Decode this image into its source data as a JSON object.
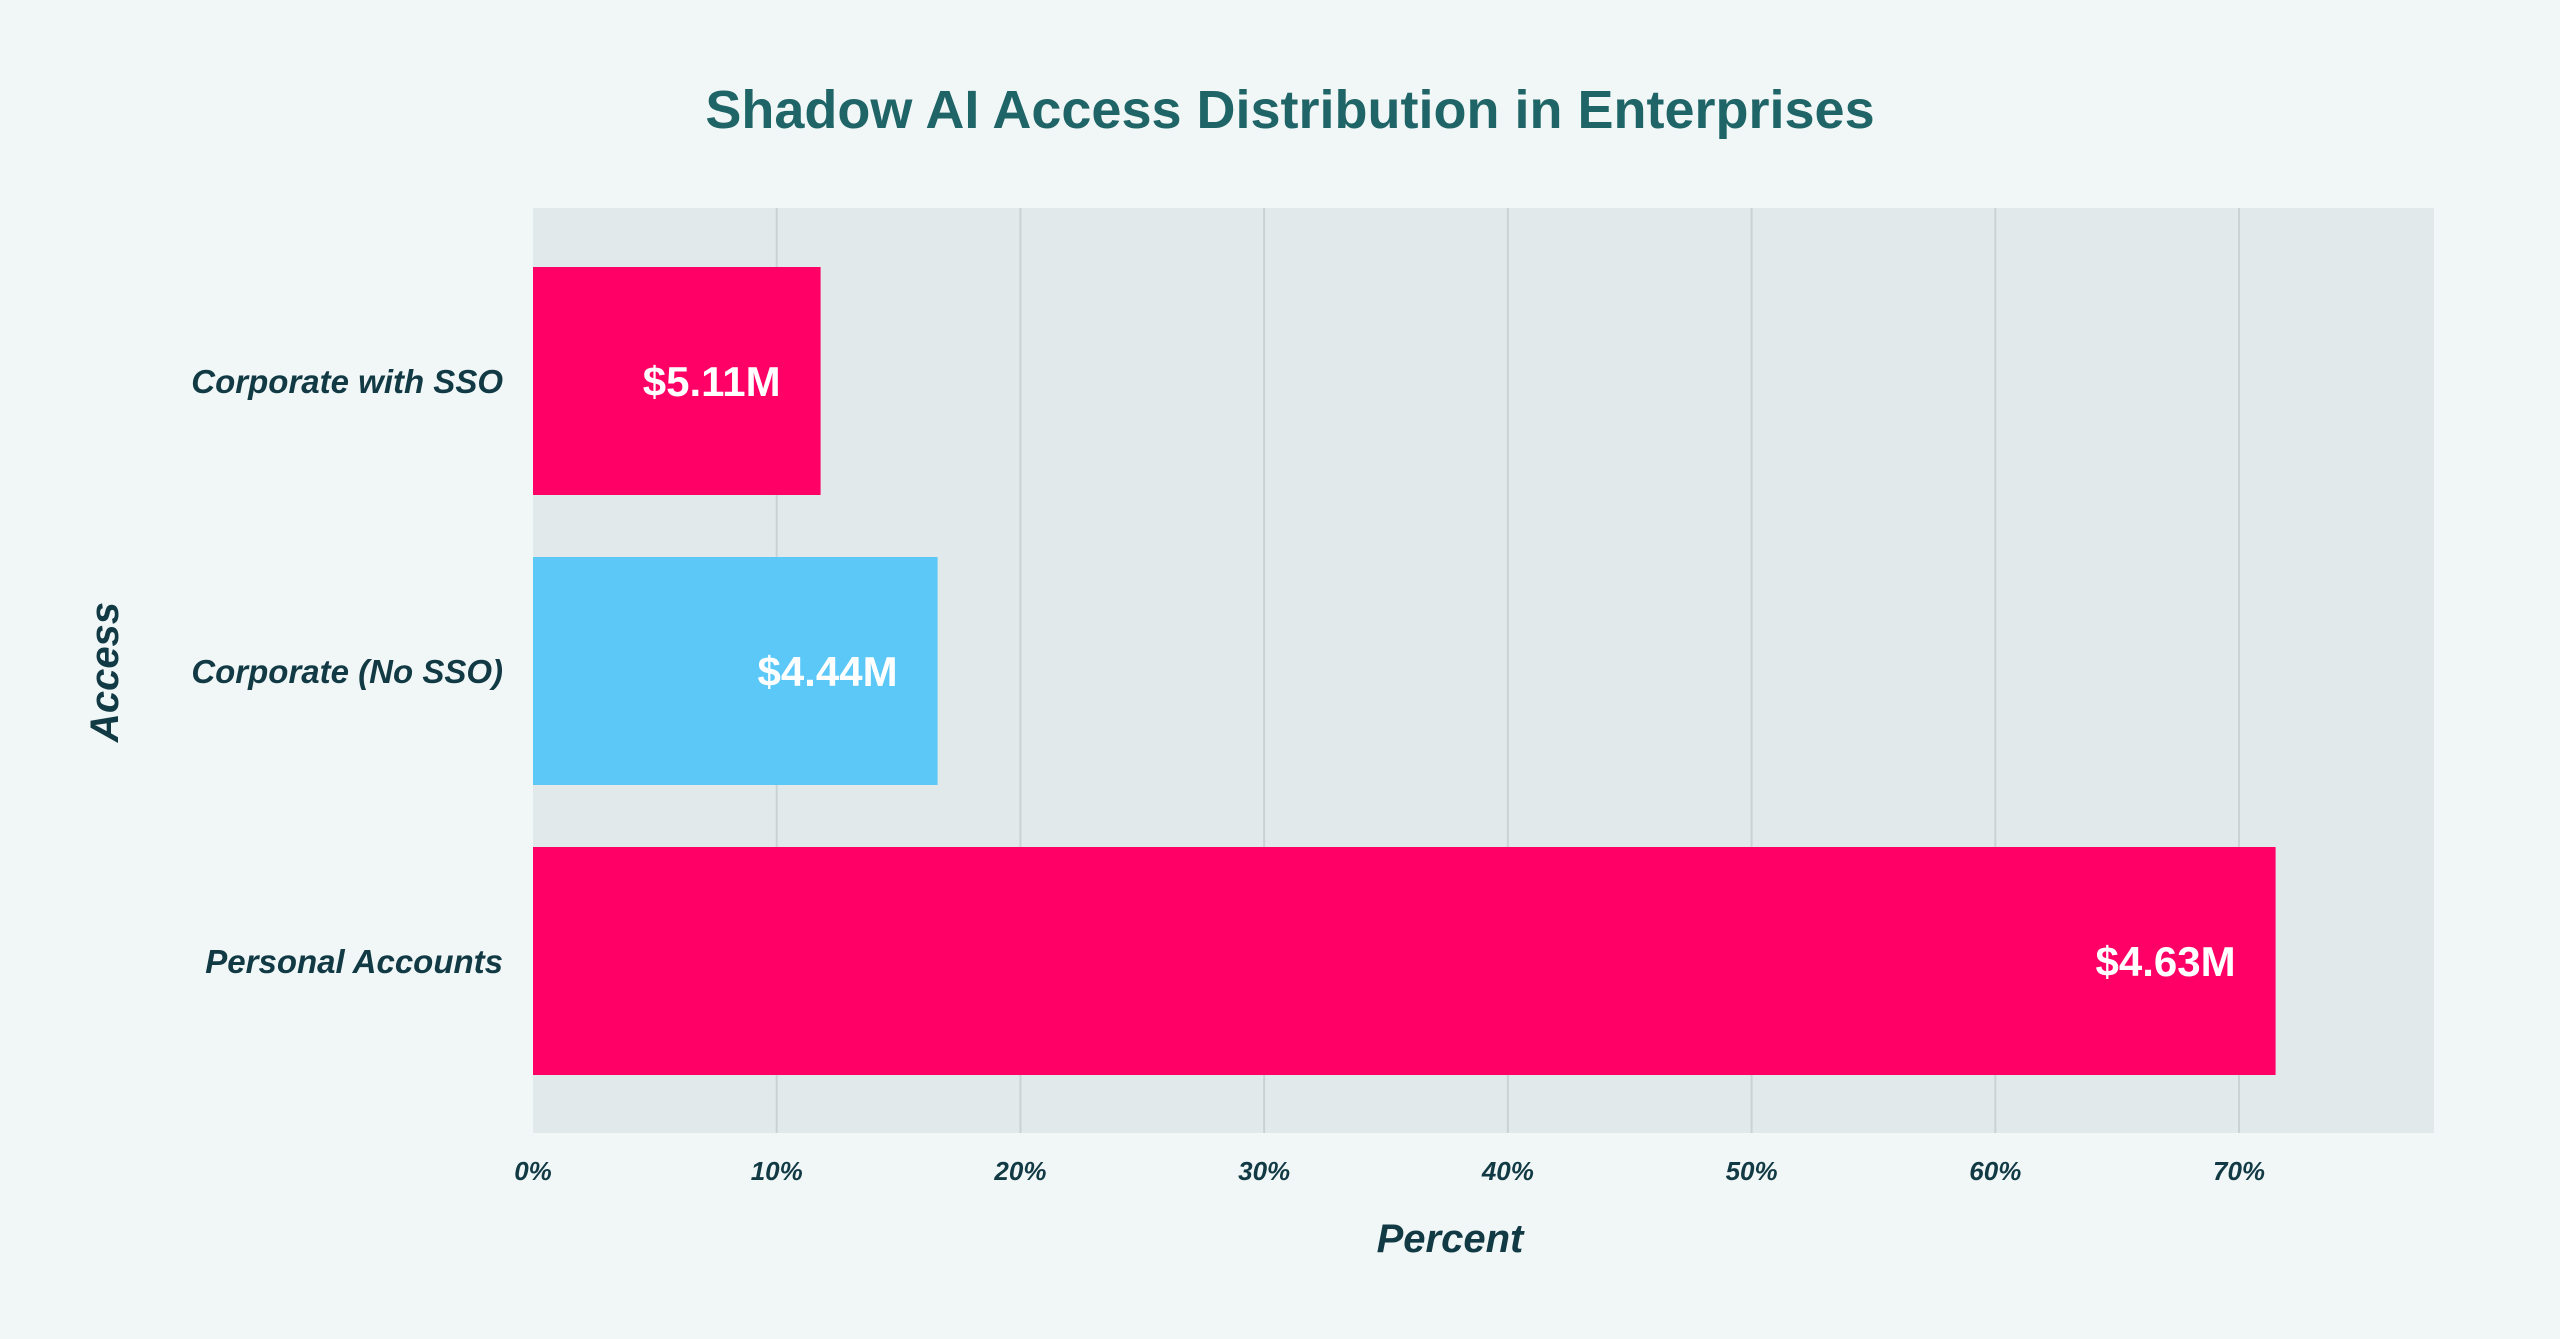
{
  "chart_data": {
    "type": "bar",
    "orientation": "horizontal",
    "title": "Shadow AI Access Distribution in Enterprises",
    "xlabel": "Percent",
    "ylabel": "Access",
    "categories": [
      "Corporate with SSO",
      "Corporate (No SSO)",
      "Personal Accounts"
    ],
    "values": [
      11.8,
      16.6,
      71.5
    ],
    "data_labels": [
      "$5.11M",
      "$4.44M",
      "$4.63M"
    ],
    "bar_colors": [
      "#ff0066",
      "#5bc8f8",
      "#ff0066"
    ],
    "xlim": [
      0,
      78
    ],
    "xticks": [
      0,
      10,
      20,
      30,
      40,
      50,
      60,
      70
    ],
    "xtick_labels": [
      "0%",
      "10%",
      "20%",
      "30%",
      "40%",
      "50%",
      "60%",
      "70%"
    ],
    "grid": true,
    "legend": "none"
  },
  "colors": {
    "background": "#f1f7f7",
    "plot_background": "#e1e9eb",
    "gridline": "#c9d3d6",
    "title": "#1f6466",
    "text": "#123a45",
    "value_label": "#ffffff"
  }
}
